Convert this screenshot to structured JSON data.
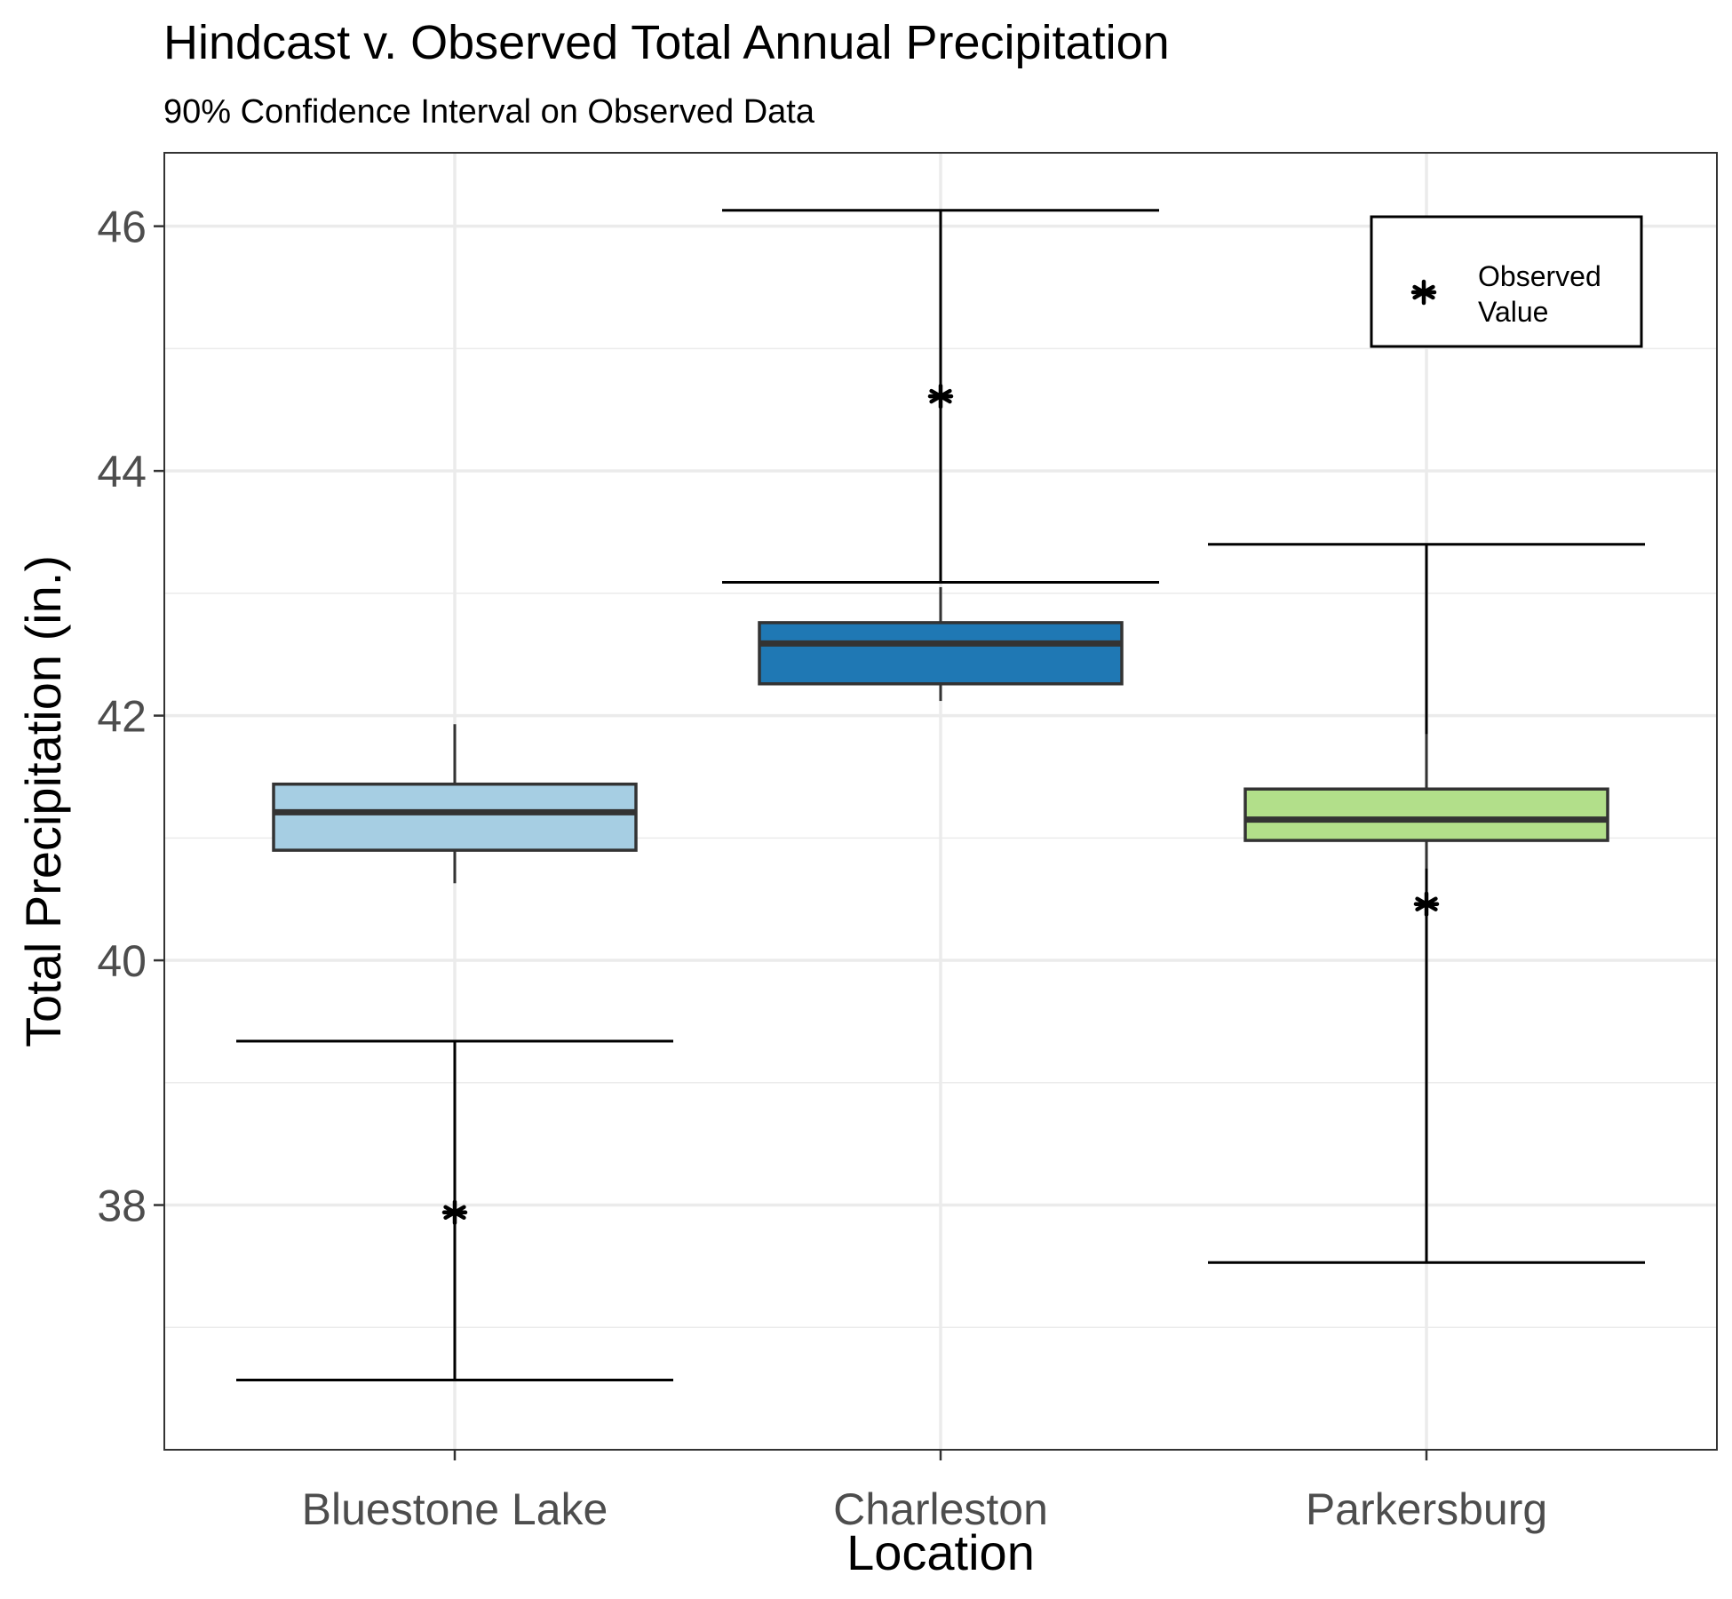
{
  "chart_data": {
    "type": "boxplot",
    "title": "Hindcast v. Observed Total Annual Precipitation",
    "subtitle": "90% Confidence Interval on Observed Data",
    "xlabel": "Location",
    "ylabel": "Total Precipitation (in.)",
    "ylim": [
      36.0,
      46.6
    ],
    "yticks": [
      38,
      40,
      42,
      44,
      46
    ],
    "categories": [
      "Bluestone Lake",
      "Charleston",
      "Parkersburg"
    ],
    "boxes": [
      {
        "category": "Bluestone Lake",
        "whisker_low": 40.63,
        "q1": 40.9,
        "median": 41.21,
        "q3": 41.44,
        "whisker_high": 41.93,
        "fill": "#a6cee3"
      },
      {
        "category": "Charleston",
        "whisker_low": 42.12,
        "q1": 42.26,
        "median": 42.59,
        "q3": 42.76,
        "whisker_high": 43.05,
        "fill": "#1f78b4"
      },
      {
        "category": "Parkersburg",
        "whisker_low": 40.75,
        "q1": 40.98,
        "median": 41.15,
        "q3": 41.4,
        "whisker_high": 41.85,
        "fill": "#b2df8a"
      }
    ],
    "observed": [
      {
        "category": "Bluestone Lake",
        "value": 37.94,
        "ci_low": 36.57,
        "ci_high": 39.34
      },
      {
        "category": "Charleston",
        "value": 44.61,
        "ci_low": 43.09,
        "ci_high": 46.13
      },
      {
        "category": "Parkersburg",
        "value": 40.46,
        "ci_low": 37.53,
        "ci_high": 43.4
      }
    ],
    "legend": {
      "label_line1": "Observed",
      "label_line2": "Value",
      "placement": "top-right"
    },
    "grid": true
  }
}
